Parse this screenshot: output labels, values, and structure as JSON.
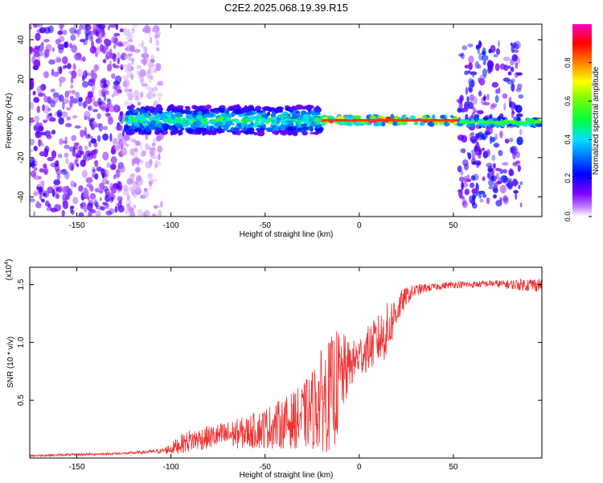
{
  "title": "C2E2.2025.068.19.39.R15",
  "chart_data": [
    {
      "type": "heatmap",
      "xlabel": "Height of straight line (km)",
      "ylabel": "Frequency (Hz)",
      "xlim": [
        -175,
        97
      ],
      "ylim": [
        -50,
        48
      ],
      "xticks": [
        -150,
        -100,
        -50,
        0,
        50
      ],
      "xtick_labels": [
        "-150",
        "-100",
        "-50",
        "0",
        "50"
      ],
      "yticks": [
        -40,
        -20,
        0,
        20,
        40
      ],
      "ytick_labels": [
        "-40",
        "-20",
        "0",
        "20",
        "40"
      ],
      "colorbar": {
        "label": "Normalized spectral amplitude",
        "range": [
          0,
          1
        ],
        "ticks": [
          0.0,
          0.2,
          0.4,
          0.6,
          0.8
        ],
        "tick_labels": [
          "0.0",
          "0.2",
          "0.4",
          "0.6",
          "0.8"
        ],
        "colors": [
          "#ffffff",
          "#8000ff",
          "#0000ff",
          "#00c8ff",
          "#00ff00",
          "#ffff00",
          "#ff8000",
          "#ff0000",
          "#ff00c0"
        ]
      },
      "regions": [
        {
          "x": [
            -175,
            -125
          ],
          "freq": [
            -50,
            48
          ],
          "amplitude": 0.15,
          "kind": "broadband noise"
        },
        {
          "x": [
            -125,
            -105
          ],
          "freq": [
            -50,
            48
          ],
          "amplitude": 0.05,
          "kind": "sparse noise"
        },
        {
          "x": [
            -124,
            -20
          ],
          "freq": [
            -8,
            6
          ],
          "amplitude": 0.45,
          "kind": "tone band"
        },
        {
          "x": [
            -20,
            53
          ],
          "freq": [
            -3,
            1
          ],
          "amplitude": 0.95,
          "kind": "strong tone"
        },
        {
          "x": [
            53,
            86
          ],
          "freq": [
            -45,
            38
          ],
          "amplitude": 0.2,
          "kind": "broadband noise"
        },
        {
          "x": [
            53,
            97
          ],
          "freq": [
            -4,
            0
          ],
          "amplitude": 0.6,
          "kind": "tone"
        }
      ]
    },
    {
      "type": "line",
      "xlabel": "Height of straight line (km)",
      "ylabel": "SNR (10 * v/v)",
      "y_multiplier": "(x10",
      "y_multiplier_exp": "4",
      "y_multiplier_close": ")",
      "xlim": [
        -175,
        97
      ],
      "ylim": [
        0,
        1.65
      ],
      "xticks": [
        -150,
        -100,
        -50,
        0,
        50
      ],
      "xtick_labels": [
        "-150",
        "-100",
        "-50",
        "0",
        "50"
      ],
      "yticks": [
        0.5,
        1.0,
        1.5
      ],
      "ytick_labels": [
        "0.5",
        "1.0",
        "1.5"
      ],
      "color": "#ee3333",
      "series": [
        {
          "name": "SNR",
          "x": [
            -175,
            -150,
            -125,
            -115,
            -105,
            -100,
            -95,
            -90,
            -80,
            -70,
            -60,
            -50,
            -40,
            -30,
            -25,
            -20,
            -15,
            -12,
            -10,
            -5,
            0,
            5,
            10,
            15,
            20,
            25,
            30,
            35,
            40,
            50,
            60,
            70,
            80,
            90,
            97
          ],
          "y": [
            0.02,
            0.03,
            0.04,
            0.05,
            0.06,
            0.08,
            0.12,
            0.15,
            0.18,
            0.2,
            0.22,
            0.26,
            0.3,
            0.36,
            0.42,
            0.5,
            0.55,
            0.62,
            0.7,
            0.8,
            0.88,
            0.95,
            1.02,
            1.1,
            1.28,
            1.4,
            1.45,
            1.47,
            1.48,
            1.5,
            1.5,
            1.51,
            1.5,
            1.5,
            1.5
          ],
          "spread": [
            0.01,
            0.01,
            0.01,
            0.015,
            0.02,
            0.05,
            0.08,
            0.1,
            0.1,
            0.12,
            0.14,
            0.18,
            0.22,
            0.28,
            0.35,
            0.45,
            0.5,
            0.5,
            0.42,
            0.2,
            0.18,
            0.2,
            0.22,
            0.25,
            0.15,
            0.08,
            0.05,
            0.04,
            0.03,
            0.03,
            0.03,
            0.03,
            0.04,
            0.06,
            0.06
          ]
        }
      ]
    }
  ]
}
